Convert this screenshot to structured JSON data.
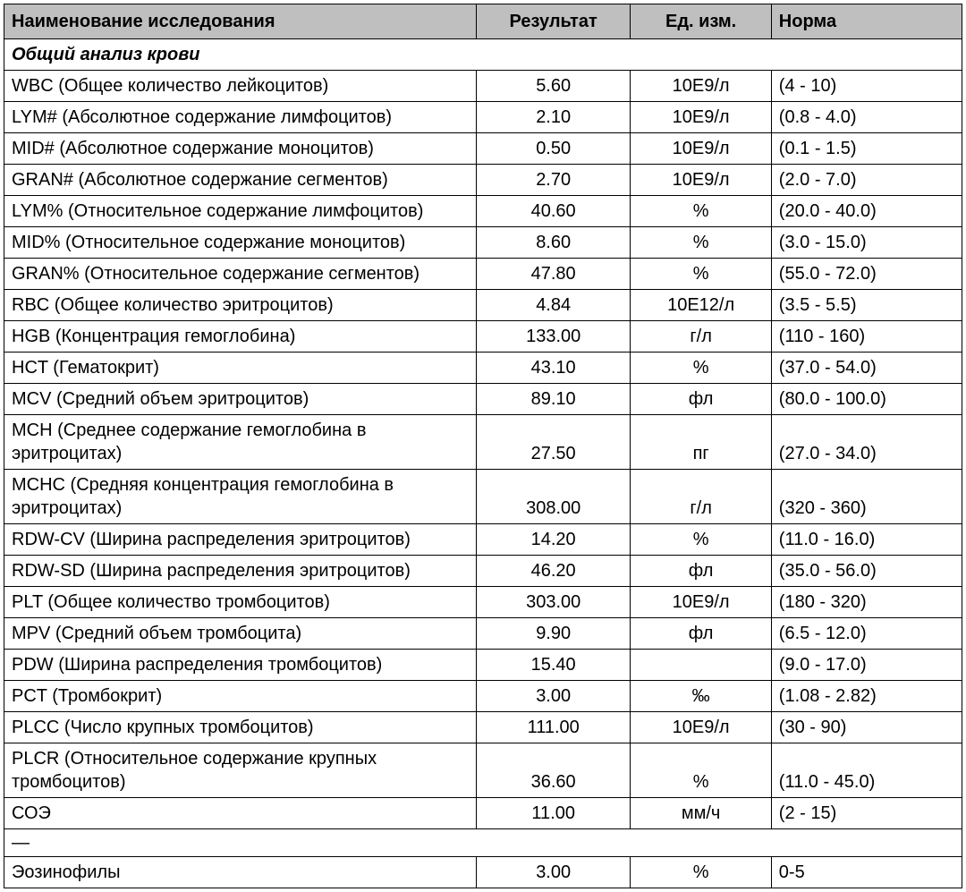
{
  "table": {
    "columns": {
      "name": "Наименование исследования",
      "result": "Результат",
      "unit": "Ед. изм.",
      "norm": "Норма"
    },
    "section_title": "Общий анализ крови",
    "separator": "—",
    "header_bg": "#bfbfbf",
    "border_color": "#000000",
    "font_size": 20,
    "rows": [
      {
        "name": "WBC (Общее количество лейкоцитов)",
        "result": "5.60",
        "unit": "10Е9/л",
        "norm": "(4 - 10)"
      },
      {
        "name": "LYM# (Абсолютное содержание лимфоцитов)",
        "result": "2.10",
        "unit": "10Е9/л",
        "norm": "(0.8 - 4.0)"
      },
      {
        "name": "MID# (Абсолютное содержание моноцитов)",
        "result": "0.50",
        "unit": "10Е9/л",
        "norm": "(0.1 - 1.5)"
      },
      {
        "name": "GRAN# (Абсолютное содержание сегментов)",
        "result": "2.70",
        "unit": "10Е9/л",
        "norm": "(2.0 - 7.0)"
      },
      {
        "name": "LYM% (Относительное содержание лимфоцитов)",
        "result": "40.60",
        "unit": "%",
        "norm": "(20.0 - 40.0)"
      },
      {
        "name": "MID% (Относительное содержание моноцитов)",
        "result": "8.60",
        "unit": "%",
        "norm": "(3.0 - 15.0)"
      },
      {
        "name": "GRAN% (Относительное содержание сегментов)",
        "result": "47.80",
        "unit": "%",
        "norm": "(55.0 - 72.0)"
      },
      {
        "name": "RBC (Общее количество эритроцитов)",
        "result": "4.84",
        "unit": "10Е12/л",
        "norm": "(3.5 - 5.5)"
      },
      {
        "name": "HGB (Концентрация гемоглобина)",
        "result": "133.00",
        "unit": "г/л",
        "norm": "(110 - 160)"
      },
      {
        "name": "HCT (Гематокрит)",
        "result": "43.10",
        "unit": "%",
        "norm": "(37.0 - 54.0)"
      },
      {
        "name": "MCV (Средний объем эритроцитов)",
        "result": "89.10",
        "unit": "фл",
        "norm": "(80.0 - 100.0)"
      },
      {
        "name": "MCH (Среднее содержание гемоглобина в эритроцитах)",
        "result": "27.50",
        "unit": "пг",
        "norm": "(27.0 - 34.0)"
      },
      {
        "name": "MCHC (Средняя концентрация гемоглобина в эритроцитах)",
        "result": "308.00",
        "unit": "г/л",
        "norm": "(320 - 360)"
      },
      {
        "name": "RDW-CV (Ширина распределения эритроцитов)",
        "result": "14.20",
        "unit": "%",
        "norm": "(11.0 - 16.0)"
      },
      {
        "name": "RDW-SD (Ширина распределения эритроцитов)",
        "result": "46.20",
        "unit": "фл",
        "norm": "(35.0 - 56.0)"
      },
      {
        "name": "PLT (Общее количество тромбоцитов)",
        "result": "303.00",
        "unit": "10Е9/л",
        "norm": "(180 - 320)"
      },
      {
        "name": "MPV (Средний объем тромбоцита)",
        "result": "9.90",
        "unit": "фл",
        "norm": "(6.5 - 12.0)"
      },
      {
        "name": "PDW (Ширина распределения тромбоцитов)",
        "result": "15.40",
        "unit": "",
        "norm": "(9.0 - 17.0)"
      },
      {
        "name": "PCT (Тромбокрит)",
        "result": "3.00",
        "unit": "‰",
        "norm": "(1.08 - 2.82)"
      },
      {
        "name": "PLCC (Число крупных тромбоцитов)",
        "result": "111.00",
        "unit": "10Е9/л",
        "norm": "(30 - 90)"
      },
      {
        "name": "PLCR (Относительное содержание крупных тромбоцитов)",
        "result": "36.60",
        "unit": "%",
        "norm": "(11.0 - 45.0)"
      },
      {
        "name": "СОЭ",
        "result": "11.00",
        "unit": "мм/ч",
        "norm": "(2 - 15)"
      }
    ],
    "rows2": [
      {
        "name": "Эозинофилы",
        "result": "3.00",
        "unit": "%",
        "norm": "0-5"
      }
    ]
  }
}
